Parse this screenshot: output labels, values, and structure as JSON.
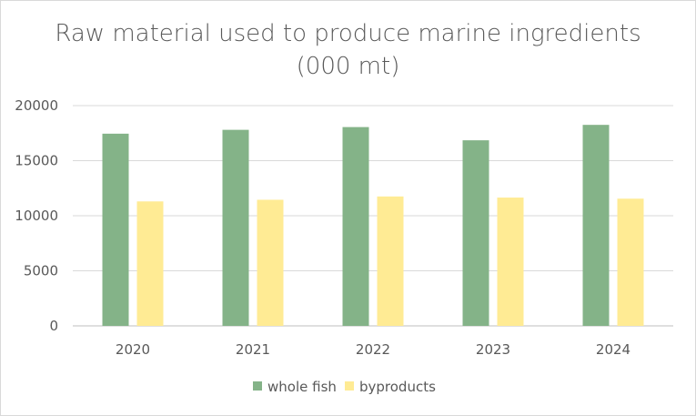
{
  "chart_data": {
    "type": "bar",
    "title": "Raw material used to produce marine ingredients",
    "subtitle": "(000 mt)",
    "categories": [
      "2020",
      "2021",
      "2022",
      "2023",
      "2024"
    ],
    "series": [
      {
        "name": "whole fish",
        "color": "#84b388",
        "values": [
          17450,
          17800,
          18050,
          16850,
          18250
        ]
      },
      {
        "name": "byproducts",
        "color": "#ffeb94",
        "values": [
          11300,
          11450,
          11750,
          11650,
          11550
        ]
      }
    ],
    "ylim": [
      0,
      20000
    ],
    "yticks": [
      0,
      5000,
      10000,
      15000,
      20000
    ],
    "grid": true,
    "legend": "bottom",
    "xlabel": "",
    "ylabel": ""
  }
}
